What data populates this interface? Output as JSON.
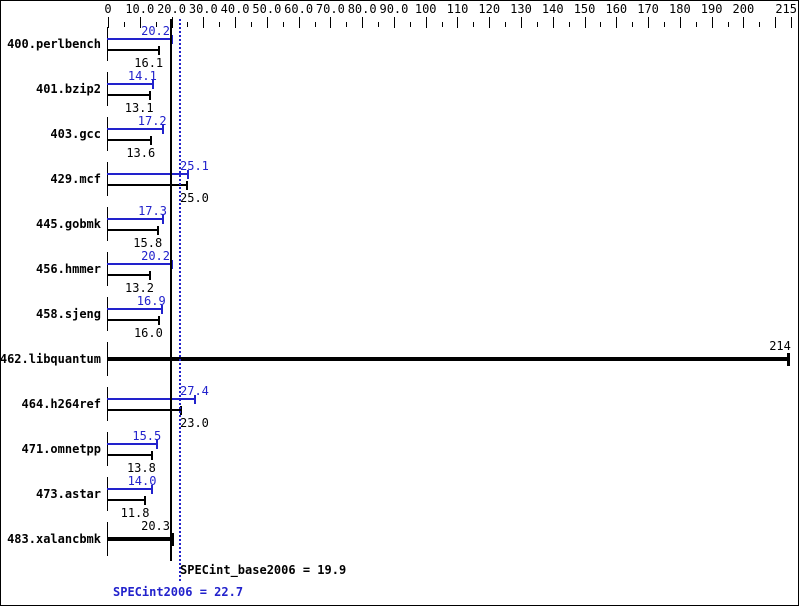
{
  "chart_data": {
    "type": "bar",
    "orientation": "horizontal",
    "title": "",
    "xlabel": "",
    "ylabel": "",
    "xlim": [
      0,
      215
    ],
    "axis_position": "top",
    "grid": false,
    "minor_tick_step": 5,
    "axis_ticks": [
      {
        "v": 0,
        "label": "0"
      },
      {
        "v": 10,
        "label": "10.0"
      },
      {
        "v": 20,
        "label": "20.0"
      },
      {
        "v": 30,
        "label": "30.0"
      },
      {
        "v": 40,
        "label": "40.0"
      },
      {
        "v": 50,
        "label": "50.0"
      },
      {
        "v": 60,
        "label": "60.0"
      },
      {
        "v": 70,
        "label": "70.0"
      },
      {
        "v": 80,
        "label": "80.0"
      },
      {
        "v": 90,
        "label": "90.0"
      },
      {
        "v": 100,
        "label": "100"
      },
      {
        "v": 110,
        "label": "110"
      },
      {
        "v": 120,
        "label": "120"
      },
      {
        "v": 130,
        "label": "130"
      },
      {
        "v": 140,
        "label": "140"
      },
      {
        "v": 150,
        "label": "150"
      },
      {
        "v": 160,
        "label": "160"
      },
      {
        "v": 170,
        "label": "170"
      },
      {
        "v": 180,
        "label": "180"
      },
      {
        "v": 190,
        "label": "190"
      },
      {
        "v": 200,
        "label": "200"
      },
      {
        "v": 215,
        "label": "215"
      }
    ],
    "series_meta": {
      "peak_name": "SPECint2006",
      "base_name": "SPECint_base2006",
      "peak_color": "#2222cc",
      "base_color": "#000000"
    },
    "rows": [
      {
        "name": "400.perlbench",
        "peak": "20.2",
        "base": "16.1"
      },
      {
        "name": "401.bzip2",
        "peak": "14.1",
        "base": "13.1"
      },
      {
        "name": "403.gcc",
        "peak": "17.2",
        "base": "13.6"
      },
      {
        "name": "429.mcf",
        "peak": "25.1",
        "base": "25.0"
      },
      {
        "name": "445.gobmk",
        "peak": "17.3",
        "base": "15.8"
      },
      {
        "name": "456.hmmer",
        "peak": "20.2",
        "base": "13.2"
      },
      {
        "name": "458.sjeng",
        "peak": "16.9",
        "base": "16.0"
      },
      {
        "name": "462.libquantum",
        "single": "214"
      },
      {
        "name": "464.h264ref",
        "peak": "27.4",
        "base": "23.0"
      },
      {
        "name": "471.omnetpp",
        "peak": "15.5",
        "base": "13.8"
      },
      {
        "name": "473.astar",
        "peak": "14.0",
        "base": "11.8"
      },
      {
        "name": "483.xalancbmk",
        "single": "20.3"
      }
    ],
    "means": {
      "base": {
        "label": "SPECint_base2006 = 19.9",
        "value": 19.9,
        "style": "solid",
        "color": "#000000"
      },
      "peak": {
        "label": "SPECint2006 = 22.7",
        "value": 22.7,
        "style": "dotted",
        "color": "#2222cc"
      }
    }
  }
}
